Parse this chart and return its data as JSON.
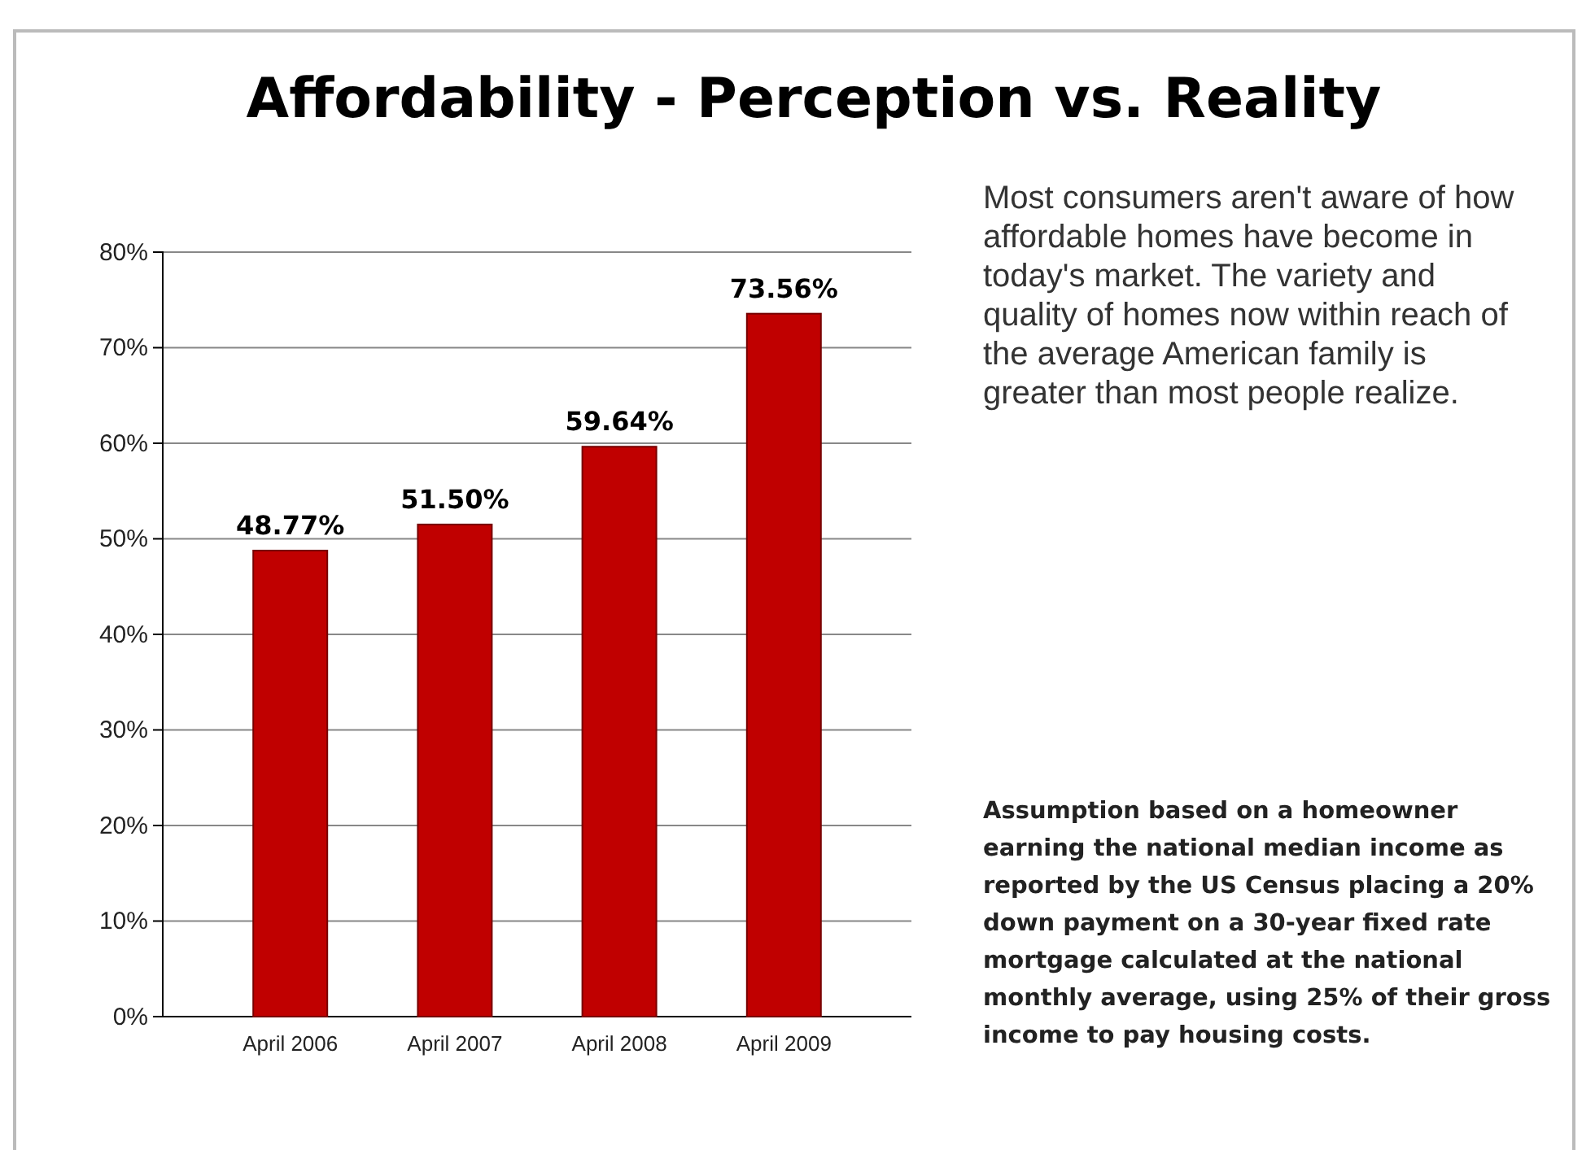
{
  "chart_data": {
    "type": "bar",
    "title": "Affordability - Perception vs. Reality",
    "categories": [
      "April 2006",
      "April 2007",
      "April 2008",
      "April 2009"
    ],
    "values": [
      48.77,
      51.5,
      59.64,
      73.56
    ],
    "color": "#c00000",
    "value_labels": [
      "48.77%",
      "51.50%",
      "59.64%",
      "73.56%"
    ],
    "ylim": [
      0,
      80
    ],
    "yticks": [
      {
        "value": 0,
        "label": "0%"
      },
      {
        "value": 10,
        "label": "10%"
      },
      {
        "value": 20,
        "label": "20%"
      },
      {
        "value": 30,
        "label": "30%"
      },
      {
        "value": 40,
        "label": "40%"
      },
      {
        "value": 50,
        "label": "50%"
      },
      {
        "value": 60,
        "label": "60%"
      },
      {
        "value": 70,
        "label": "70%"
      },
      {
        "value": 80,
        "label": "80%"
      }
    ],
    "grid": "y",
    "annotations": [
      "Most consumers aren't aware of how affordable homes have become in today's market. The variety and quality of homes now within reach of the average American family is greater than most people realize.",
      "Assumption based on a homeowner earning the national median income as reported by the US Census placing a  20% down payment on a 30-year fixed rate mortgage calculated at the national monthly average, using 25% of their gross income to pay housing costs."
    ]
  }
}
